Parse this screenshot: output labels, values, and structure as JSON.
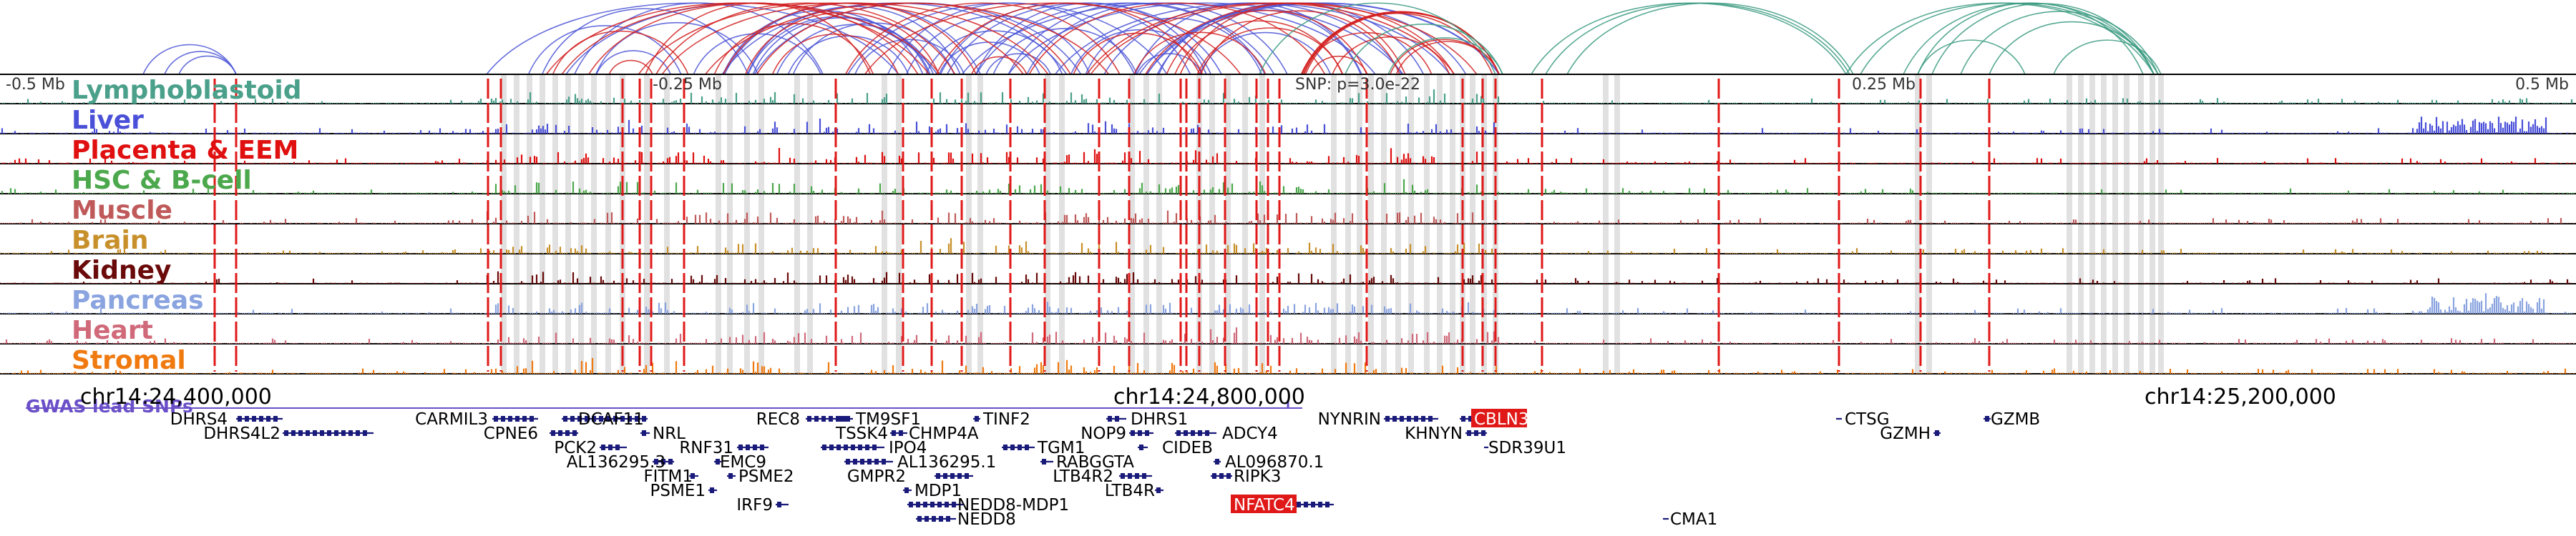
{
  "scale_labels": [
    "-0.5 Mb",
    "-0.25 Mb",
    "0.25 Mb",
    "0.5 Mb"
  ],
  "snp_label": "SNP: p=3.0e-22",
  "tracks": [
    {
      "label": "Lymphoblastoid",
      "color": "#4aa08a"
    },
    {
      "label": "Liver",
      "color": "#4a50d8"
    },
    {
      "label": "Placenta & EEM",
      "color": "#e01010"
    },
    {
      "label": "HSC & B-cell",
      "color": "#4ca84c"
    },
    {
      "label": "Muscle",
      "color": "#c05a5a"
    },
    {
      "label": "Brain",
      "color": "#c8902a"
    },
    {
      "label": "Kidney",
      "color": "#6a0a0a"
    },
    {
      "label": "Pancreas",
      "color": "#8aa4e0"
    },
    {
      "label": "Heart",
      "color": "#d06a7a"
    },
    {
      "label": "Stromal",
      "color": "#f07a10"
    }
  ],
  "gwas_label": "GWAS lead SNPs",
  "coordinates": [
    "chr14:24,400,000",
    "chr14:24,800,000",
    "chr14:25,200,000"
  ],
  "genes": [
    {
      "name": "DHRS4",
      "highlight": false
    },
    {
      "name": "DHRS4L2",
      "highlight": false
    },
    {
      "name": "CARMIL3",
      "highlight": false
    },
    {
      "name": "CPNE6",
      "highlight": false
    },
    {
      "name": "DCAF11",
      "highlight": false
    },
    {
      "name": "NRL",
      "highlight": false
    },
    {
      "name": "PCK2",
      "highlight": false
    },
    {
      "name": "AL136295.3",
      "highlight": false
    },
    {
      "name": "FITM1",
      "highlight": false
    },
    {
      "name": "PSME1",
      "highlight": false
    },
    {
      "name": "RNF31",
      "highlight": false
    },
    {
      "name": "EMC9",
      "highlight": false
    },
    {
      "name": "PSME2",
      "highlight": false
    },
    {
      "name": "IRF9",
      "highlight": false
    },
    {
      "name": "REC8",
      "highlight": false
    },
    {
      "name": "TM9SF1",
      "highlight": false
    },
    {
      "name": "TSSK4",
      "highlight": false
    },
    {
      "name": "CHMP4A",
      "highlight": false
    },
    {
      "name": "IPO4",
      "highlight": false
    },
    {
      "name": "AL136295.1",
      "highlight": false
    },
    {
      "name": "GMPR2",
      "highlight": false
    },
    {
      "name": "MDP1",
      "highlight": false
    },
    {
      "name": "NEDD8-MDP1",
      "highlight": false
    },
    {
      "name": "NEDD8",
      "highlight": false
    },
    {
      "name": "TINF2",
      "highlight": false
    },
    {
      "name": "TGM1",
      "highlight": false
    },
    {
      "name": "RABGGTA",
      "highlight": false
    },
    {
      "name": "LTB4R2",
      "highlight": false
    },
    {
      "name": "LTB4R",
      "highlight": false
    },
    {
      "name": "DHRS1",
      "highlight": false
    },
    {
      "name": "NOP9",
      "highlight": false
    },
    {
      "name": "CIDEB",
      "highlight": false
    },
    {
      "name": "ADCY4",
      "highlight": false
    },
    {
      "name": "AL096870.1",
      "highlight": false
    },
    {
      "name": "RIPK3",
      "highlight": false
    },
    {
      "name": "NFATC4",
      "highlight": true
    },
    {
      "name": "NYNRIN",
      "highlight": false
    },
    {
      "name": "CBLN3",
      "highlight": true
    },
    {
      "name": "KHNYN",
      "highlight": false
    },
    {
      "name": "SDR39U1",
      "highlight": false
    },
    {
      "name": "CMA1",
      "highlight": false
    },
    {
      "name": "CTSG",
      "highlight": false
    },
    {
      "name": "GZMH",
      "highlight": false
    },
    {
      "name": "GZMB",
      "highlight": false
    }
  ],
  "colors": {
    "loop_blue": "#4b55d6",
    "loop_red": "#d22020",
    "loop_teal": "#3a9a80",
    "highlight_line": "#e01818",
    "gene_color": "#1a1a7a",
    "gene_highlight_bg": "#e01818",
    "gwas_color": "#6a4fc8"
  }
}
